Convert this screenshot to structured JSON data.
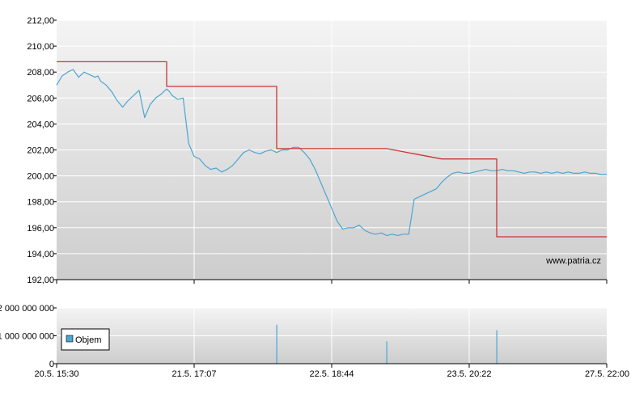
{
  "chart_data": [
    {
      "type": "line",
      "title": "",
      "ylim": [
        192,
        212
      ],
      "y_ticks": [
        "192,00",
        "194,00",
        "196,00",
        "198,00",
        "200,00",
        "202,00",
        "204,00",
        "206,00",
        "208,00",
        "210,00",
        "212,00"
      ],
      "x_ticks": [
        "20.5. 15:30",
        "21.5. 17:07",
        "22.5. 18:44",
        "23.5. 20:22",
        "27.5. 22:00"
      ],
      "grid": true,
      "watermark": "www.patria.cz",
      "series": [
        {
          "kind": "price",
          "color": "#4aa6d2",
          "x": [
            0,
            0.01,
            0.02,
            0.03,
            0.04,
            0.05,
            0.06,
            0.07,
            0.075,
            0.08,
            0.09,
            0.1,
            0.11,
            0.12,
            0.13,
            0.14,
            0.15,
            0.16,
            0.17,
            0.18,
            0.19,
            0.2,
            0.205,
            0.21,
            0.22,
            0.23,
            0.24,
            0.25,
            0.26,
            0.27,
            0.28,
            0.29,
            0.3,
            0.31,
            0.32,
            0.33,
            0.34,
            0.35,
            0.36,
            0.37,
            0.38,
            0.39,
            0.4,
            0.41,
            0.42,
            0.43,
            0.44,
            0.45,
            0.46,
            0.47,
            0.48,
            0.49,
            0.5,
            0.51,
            0.52,
            0.53,
            0.54,
            0.55,
            0.56,
            0.57,
            0.58,
            0.59,
            0.6,
            0.61,
            0.62,
            0.63,
            0.64,
            0.65,
            0.66,
            0.67,
            0.68,
            0.69,
            0.7,
            0.71,
            0.72,
            0.73,
            0.74,
            0.75,
            0.76,
            0.77,
            0.78,
            0.79,
            0.8,
            0.81,
            0.82,
            0.83,
            0.84,
            0.85,
            0.86,
            0.87,
            0.88,
            0.89,
            0.9,
            0.91,
            0.92,
            0.93,
            0.94,
            0.95,
            0.96,
            0.97,
            0.98,
            0.99,
            1.0
          ],
          "values": [
            207.0,
            207.7,
            208.0,
            208.2,
            207.6,
            208.0,
            207.8,
            207.6,
            207.7,
            207.3,
            207.0,
            206.5,
            205.8,
            205.3,
            205.8,
            206.2,
            206.6,
            204.5,
            205.5,
            206.0,
            206.3,
            206.7,
            206.5,
            206.2,
            205.9,
            206.0,
            202.5,
            201.5,
            201.3,
            200.8,
            200.5,
            200.6,
            200.3,
            200.5,
            200.8,
            201.3,
            201.8,
            202.0,
            201.8,
            201.7,
            201.9,
            202.0,
            201.8,
            202.0,
            202.0,
            202.2,
            202.2,
            201.8,
            201.3,
            200.5,
            199.5,
            198.5,
            197.5,
            196.5,
            195.9,
            196.0,
            196.0,
            196.2,
            195.8,
            195.6,
            195.5,
            195.6,
            195.4,
            195.5,
            195.4,
            195.5,
            195.5,
            198.2,
            198.4,
            198.6,
            198.8,
            199.0,
            199.5,
            199.9,
            200.2,
            200.3,
            200.2,
            200.2,
            200.3,
            200.4,
            200.5,
            200.4,
            200.4,
            200.5,
            200.4,
            200.4,
            200.3,
            200.2,
            200.3,
            200.3,
            200.2,
            200.3,
            200.2,
            200.3,
            200.2,
            200.3,
            200.2,
            200.2,
            200.3,
            200.2,
            200.2,
            200.1,
            200.1
          ]
        },
        {
          "kind": "reference",
          "color": "#cc3333",
          "x": [
            0,
            0.2,
            0.2,
            0.4,
            0.4,
            0.6,
            0.7,
            0.8,
            0.8,
            1.0
          ],
          "values": [
            208.8,
            208.8,
            206.9,
            206.9,
            202.1,
            202.1,
            201.3,
            201.3,
            195.3,
            195.3
          ]
        }
      ]
    },
    {
      "type": "bar",
      "title": "",
      "y_ticks": [
        "0",
        "1 000 000 000",
        "2 000 000 000"
      ],
      "legend": {
        "label": "Objem",
        "color": "#4aa6d2"
      },
      "legend_position": "left",
      "series": [
        {
          "name": "Objem",
          "x": [
            0.4,
            0.6,
            0.8
          ],
          "values": [
            1400000000,
            800000000,
            1200000000
          ]
        }
      ]
    }
  ]
}
